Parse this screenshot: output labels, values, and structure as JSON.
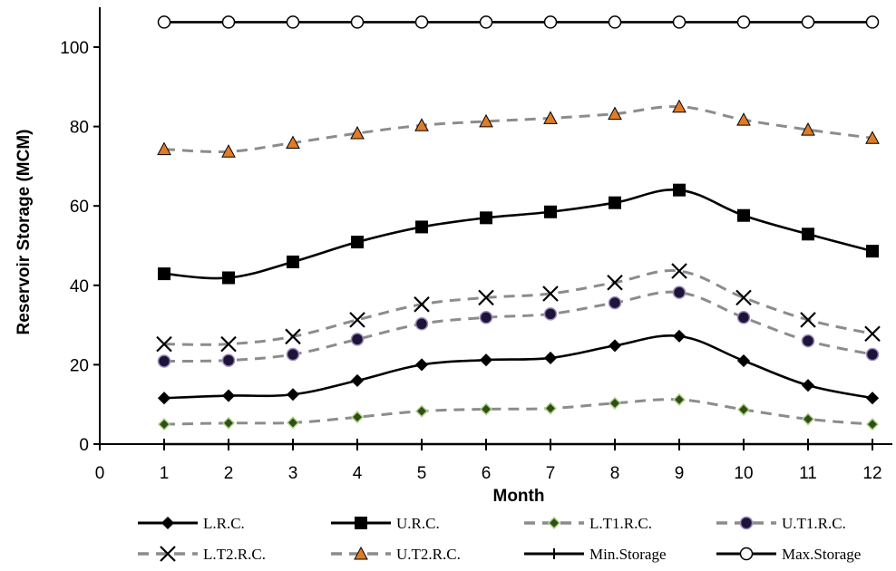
{
  "chart_data": {
    "type": "line",
    "title": "",
    "xlabel": "Month",
    "ylabel": "Reservoir Storage (MCM)",
    "xlim": [
      0,
      12
    ],
    "ylim": [
      0,
      100
    ],
    "x_ticks": [
      "0",
      "1",
      "2",
      "3",
      "4",
      "5",
      "6",
      "7",
      "8",
      "9",
      "10",
      "11",
      "12"
    ],
    "y_ticks": [
      "0",
      "20",
      "40",
      "60",
      "80",
      "100"
    ],
    "grid": false,
    "legend_position": "bottom",
    "x": [
      1,
      2,
      3,
      4,
      5,
      6,
      7,
      8,
      9,
      10,
      11,
      12
    ],
    "series": [
      {
        "name": "L.R.C.",
        "color": "#000000",
        "line": "solid",
        "marker": "diamond",
        "marker_fill": "#000000",
        "values": [
          11.6,
          12.2,
          12.5,
          16.0,
          20.0,
          21.2,
          21.7,
          24.8,
          27.2,
          21.0,
          14.8,
          11.6
        ]
      },
      {
        "name": "U.R.C.",
        "color": "#000000",
        "line": "solid",
        "marker": "square",
        "marker_fill": "#000000",
        "values": [
          42.9,
          41.9,
          45.9,
          50.9,
          54.7,
          57.0,
          58.5,
          60.8,
          64.0,
          57.6,
          52.9,
          48.6
        ]
      },
      {
        "name": "L.T1.R.C.",
        "color": "#8c8c8c",
        "line": "dashed",
        "marker": "diamond",
        "marker_fill": "#2f4f1a",
        "marker_stroke": "#b5d28a",
        "values": [
          5.0,
          5.3,
          5.4,
          6.8,
          8.3,
          8.8,
          9.0,
          10.3,
          11.2,
          8.7,
          6.3,
          5.0
        ]
      },
      {
        "name": "U.T1.R.C.",
        "color": "#8c8c8c",
        "line": "dashed",
        "marker": "circle",
        "marker_fill": "#1d1538",
        "marker_stroke": "#a08cc0",
        "values": [
          20.9,
          21.1,
          22.6,
          26.4,
          30.3,
          31.9,
          32.8,
          35.6,
          38.2,
          31.9,
          26.0,
          22.6
        ]
      },
      {
        "name": "L.T2.R.C.",
        "color": "#8c8c8c",
        "line": "dashed",
        "marker": "x",
        "marker_fill": "#000000",
        "values": [
          25.2,
          25.2,
          27.1,
          31.3,
          35.2,
          36.9,
          37.9,
          40.7,
          43.6,
          36.9,
          31.3,
          27.8
        ]
      },
      {
        "name": "U.T2.R.C.",
        "color": "#8c8c8c",
        "line": "dashed",
        "marker": "triangle",
        "marker_fill": "#e07b28",
        "marker_stroke": "#000000",
        "values": [
          74.3,
          73.7,
          75.9,
          78.3,
          80.3,
          81.3,
          82.1,
          83.2,
          85.0,
          81.7,
          79.2,
          77.1
        ]
      },
      {
        "name": "Min.Storage",
        "color": "#000000",
        "line": "solid",
        "marker": "plus",
        "marker_fill": "#000000",
        "values": [
          0,
          0,
          0,
          0,
          0,
          0,
          0,
          0,
          0,
          0,
          0,
          0
        ]
      },
      {
        "name": "Max.Storage",
        "color": "#000000",
        "line": "solid",
        "marker": "open-circle",
        "marker_fill": "#ffffff",
        "values": [
          106.3,
          106.3,
          106.3,
          106.3,
          106.3,
          106.3,
          106.3,
          106.3,
          106.3,
          106.3,
          106.3,
          106.3
        ]
      }
    ]
  }
}
